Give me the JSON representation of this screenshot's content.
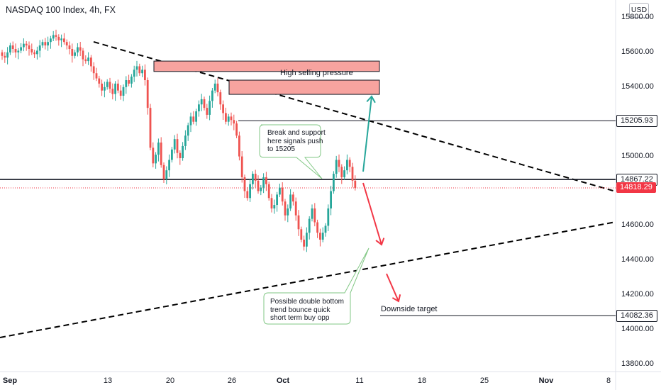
{
  "header": {
    "title": "NASDAQ 100 Index, 4h, FX",
    "currency": "USD"
  },
  "chart_data": {
    "type": "candlestick",
    "title": "NASDAQ 100 Index, 4h, FX",
    "y_ticks": [
      "15800.00",
      "15600.00",
      "15400.00",
      "15200.00",
      "15000.00",
      "14800.00",
      "14600.00",
      "14400.00",
      "14200.00",
      "14000.00",
      "13800.00"
    ],
    "x_ticks": [
      {
        "label": "Sep",
        "bold": true
      },
      {
        "label": "13",
        "bold": false
      },
      {
        "label": "20",
        "bold": false
      },
      {
        "label": "26",
        "bold": false
      },
      {
        "label": "Oct",
        "bold": true
      },
      {
        "label": "11",
        "bold": false
      },
      {
        "label": "18",
        "bold": false
      },
      {
        "label": "25",
        "bold": false
      },
      {
        "label": "Nov",
        "bold": true
      },
      {
        "label": "8",
        "bold": false
      }
    ],
    "ylim": [
      13800,
      15800
    ],
    "price_labels": [
      {
        "label": "15205.93",
        "value": 15205.93,
        "style": "dark"
      },
      {
        "label": "14867.22",
        "value": 14867.22,
        "style": "dark"
      },
      {
        "label": "14818.29",
        "value": 14818.29,
        "style": "red"
      },
      {
        "label": "14082.36",
        "value": 14082.36,
        "style": "dark"
      }
    ],
    "close_price": [
      15580,
      15570,
      15600,
      15640,
      15620,
      15600,
      15610,
      15630,
      15650,
      15640,
      15620,
      15600,
      15590,
      15610,
      15640,
      15660,
      15640,
      15660,
      15680,
      15700,
      15690,
      15670,
      15680,
      15660,
      15640,
      15620,
      15580,
      15600,
      15630,
      15610,
      15560,
      15550,
      15570,
      15520,
      15480,
      15450,
      15420,
      15380,
      15400,
      15430,
      15390,
      15360,
      15420,
      15380,
      15350,
      15400,
      15440,
      15420,
      15460,
      15500,
      15520,
      15480,
      15500,
      15440,
      15280,
      15050,
      14960,
      15010,
      15080,
      14950,
      14870,
      14920,
      14980,
      15040,
      15100,
      15020,
      14990,
      15060,
      15120,
      15180,
      15230,
      15200,
      15260,
      15300,
      15330,
      15280,
      15240,
      15320,
      15380,
      15420,
      15370,
      15300,
      15250,
      15200,
      15230,
      15210,
      15190,
      15120,
      15000,
      14880,
      14800,
      14760,
      14840,
      14900,
      14860,
      14800,
      14820,
      14880,
      14840,
      14760,
      14700,
      14720,
      14780,
      14820,
      14740,
      14660,
      14700,
      14780,
      14740,
      14660,
      14580,
      14520,
      14480,
      14560,
      14640,
      14700,
      14620,
      14560,
      14520,
      14560,
      14600,
      14700,
      14800,
      14900,
      14980,
      14940,
      14880,
      14920,
      14980,
      14940,
      14860,
      14818.29
    ],
    "zones": [
      {
        "label": "High selling pressure",
        "top": 15550,
        "bottom": 15490
      },
      {
        "label": "",
        "top": 15440,
        "bottom": 15358
      }
    ],
    "horizontal_levels": [
      15205.93,
      14867.22,
      14082.36
    ],
    "annotations": {
      "high_selling_pressure": "High selling pressure",
      "break_support": "Break and support\nhere signals push\nto 15205",
      "double_bottom": "Possible double bottom\ntrend bounce quick\nshort term buy opp",
      "downside_target": "Downside target"
    },
    "colors": {
      "up": "#26a69a",
      "down": "#ef5350",
      "zone_fill": "#f7a39f",
      "zone_border": "#131722",
      "trendline": "#000000",
      "arrow_up": "#26a69a",
      "arrow_down": "#f23645",
      "callout_border": "#81c784"
    }
  }
}
